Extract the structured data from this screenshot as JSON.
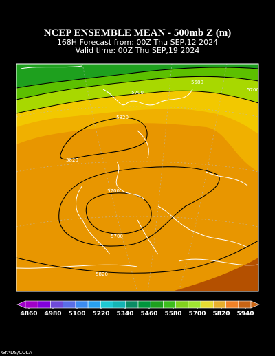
{
  "header": {
    "title": "NCEP ENSEMBLE MEAN - 500mb Z (m)",
    "subtitle_1": "168H Forecast from: 00Z Thu SEP,12 2024",
    "subtitle_2": "Valid time: 00Z Thu SEP,19 2024"
  },
  "map": {
    "contour_labels": [
      5700,
      5580,
      5700,
      5820,
      5820,
      5700,
      5700,
      5820
    ]
  },
  "colorbar": {
    "ticks": [
      4860,
      4980,
      5100,
      5220,
      5340,
      5460,
      5580,
      5700,
      5820,
      5940
    ],
    "colors": [
      "#a000c8",
      "#8200dc",
      "#6e4ad8",
      "#5a6ee6",
      "#3c8cf0",
      "#28a0f0",
      "#1ec8d2",
      "#14b4b4",
      "#0a8c64",
      "#00963c",
      "#1ea01e",
      "#3cbe1e",
      "#82d21e",
      "#a0e632",
      "#e6dc32",
      "#e6af2d",
      "#f08228",
      "#c86414"
    ]
  },
  "footer": {
    "credit": "GrADS/COLA"
  }
}
